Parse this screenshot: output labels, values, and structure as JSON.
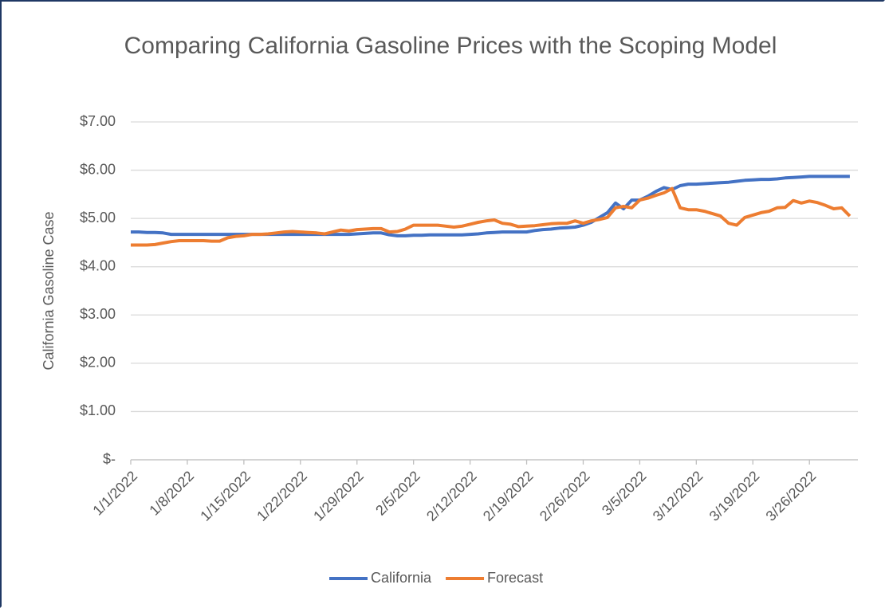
{
  "chart_data": {
    "type": "line",
    "title": "Comparing California Gasoline Prices with the Scoping Model",
    "y_label": "California Gasoline Case",
    "categories": [
      "1/1/2022",
      null,
      null,
      null,
      null,
      null,
      null,
      "1/8/2022",
      null,
      null,
      null,
      null,
      null,
      null,
      "1/15/2022",
      null,
      null,
      null,
      null,
      null,
      null,
      "1/22/2022",
      null,
      null,
      null,
      null,
      null,
      null,
      "1/29/2022",
      null,
      null,
      null,
      null,
      null,
      null,
      "2/5/2022",
      null,
      null,
      null,
      null,
      null,
      null,
      "2/12/2022",
      null,
      null,
      null,
      null,
      null,
      null,
      "2/19/2022",
      null,
      null,
      null,
      null,
      null,
      null,
      "2/26/2022",
      null,
      null,
      null,
      null,
      null,
      null,
      "3/5/2022",
      null,
      null,
      null,
      null,
      null,
      null,
      "3/12/2022",
      null,
      null,
      null,
      null,
      null,
      null,
      "3/19/2022",
      null,
      null,
      null,
      null,
      null,
      null,
      "3/26/2022",
      null,
      null,
      null,
      null,
      null
    ],
    "series": [
      {
        "name": "California",
        "color": "#4472c4",
        "values": [
          4.72,
          4.72,
          4.71,
          4.71,
          4.7,
          4.67,
          4.67,
          4.67,
          4.67,
          4.67,
          4.67,
          4.67,
          4.67,
          4.67,
          4.67,
          4.67,
          4.67,
          4.67,
          4.67,
          4.67,
          4.67,
          4.67,
          4.67,
          4.67,
          4.67,
          4.67,
          4.67,
          4.67,
          4.68,
          4.69,
          4.7,
          4.7,
          4.66,
          4.64,
          4.64,
          4.65,
          4.65,
          4.66,
          4.66,
          4.66,
          4.66,
          4.66,
          4.67,
          4.68,
          4.7,
          4.71,
          4.72,
          4.72,
          4.72,
          4.72,
          4.75,
          4.77,
          4.78,
          4.8,
          4.81,
          4.82,
          4.86,
          4.92,
          5.02,
          5.12,
          5.32,
          5.2,
          5.38,
          5.38,
          5.46,
          5.56,
          5.64,
          5.6,
          5.68,
          5.71,
          5.71,
          5.72,
          5.73,
          5.74,
          5.75,
          5.77,
          5.79,
          5.8,
          5.81,
          5.81,
          5.82,
          5.84,
          5.85,
          5.86,
          5.87,
          5.87,
          5.87,
          5.87,
          5.87,
          5.87
        ]
      },
      {
        "name": "Forecast",
        "color": "#ed7d31",
        "values": [
          4.45,
          4.45,
          4.45,
          4.46,
          4.49,
          4.52,
          4.54,
          4.54,
          4.54,
          4.54,
          4.53,
          4.53,
          4.6,
          4.63,
          4.64,
          4.67,
          4.67,
          4.68,
          4.7,
          4.72,
          4.73,
          4.72,
          4.71,
          4.7,
          4.68,
          4.72,
          4.76,
          4.74,
          4.77,
          4.78,
          4.79,
          4.79,
          4.72,
          4.73,
          4.78,
          4.86,
          4.86,
          4.86,
          4.86,
          4.84,
          4.82,
          4.84,
          4.88,
          4.92,
          4.95,
          4.97,
          4.9,
          4.88,
          4.83,
          4.84,
          4.85,
          4.87,
          4.89,
          4.9,
          4.9,
          4.95,
          4.9,
          4.95,
          4.98,
          5.02,
          5.22,
          5.25,
          5.22,
          5.38,
          5.42,
          5.48,
          5.53,
          5.62,
          5.22,
          5.18,
          5.18,
          5.15,
          5.1,
          5.05,
          4.9,
          4.86,
          5.02,
          5.07,
          5.12,
          5.15,
          5.22,
          5.23,
          5.37,
          5.32,
          5.36,
          5.33,
          5.27,
          5.2,
          5.22,
          5.05
        ]
      }
    ],
    "ylim": [
      0,
      7
    ],
    "yticks": [
      {
        "value": 0,
        "label": "$-"
      },
      {
        "value": 1,
        "label": "$1.00"
      },
      {
        "value": 2,
        "label": "$2.00"
      },
      {
        "value": 3,
        "label": "$3.00"
      },
      {
        "value": 4,
        "label": "$4.00"
      },
      {
        "value": 5,
        "label": "$5.00"
      },
      {
        "value": 6,
        "label": "$6.00"
      },
      {
        "value": 7,
        "label": "$7.00"
      }
    ],
    "grid": true,
    "legend": "bottom"
  }
}
